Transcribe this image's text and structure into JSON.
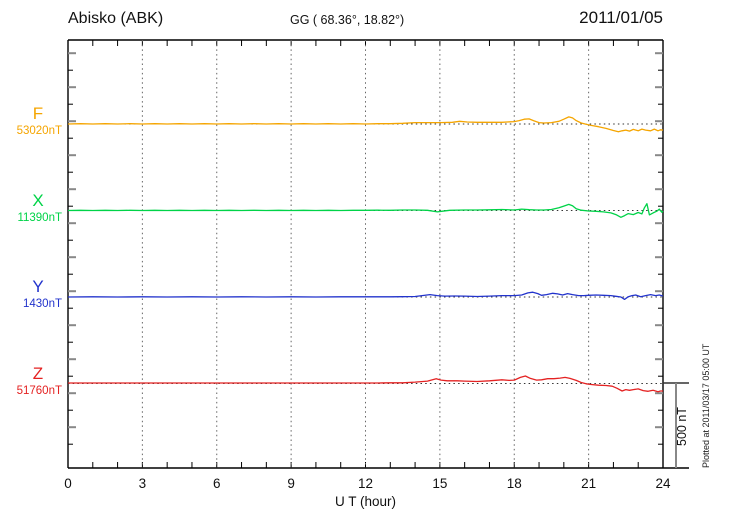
{
  "header": {
    "station": "Abisko (ABK)",
    "coords": "GG ( 68.36°,  18.82°)",
    "date": "2011/01/05"
  },
  "axes": {
    "x_label": "U T (hour)",
    "x_ticks": [
      0,
      3,
      6,
      9,
      12,
      15,
      18,
      21,
      24
    ],
    "x_minor_step_hours": 1,
    "y_tick_step_nT": 100
  },
  "scale_bar": {
    "label": "500 nT",
    "nT": 500
  },
  "footer_note": "Plotted at 2011/03/17 05:00 UT",
  "colors": {
    "F": "#f5a500",
    "X": "#00d348",
    "Y": "#2233cc",
    "Z": "#e42222",
    "axis": "#000000",
    "grid_dots": "#666666",
    "baseline_dots": "#333333"
  },
  "chart_data": {
    "type": "line",
    "title": "Abisko (ABK) magnetogram 2011/01/05",
    "xlabel": "U T (hour)",
    "x_range": [
      0,
      24
    ],
    "grid": "dotted vertical every 3 h, dotted horizontal baseline per trace",
    "amplitude_scale_nT": 500,
    "series": [
      {
        "name": "F",
        "label": "F",
        "value_label": "53020nT",
        "baseline_nT": 53020,
        "color": "#f5a500",
        "points": [
          [
            0,
            0
          ],
          [
            0.5,
            2
          ],
          [
            1,
            0
          ],
          [
            1.5,
            2
          ],
          [
            2,
            0
          ],
          [
            2.5,
            2
          ],
          [
            3,
            0
          ],
          [
            3.5,
            2
          ],
          [
            4,
            0
          ],
          [
            4.5,
            2
          ],
          [
            5,
            0
          ],
          [
            5.5,
            2
          ],
          [
            6,
            0
          ],
          [
            6.5,
            2
          ],
          [
            7,
            0
          ],
          [
            7.5,
            2
          ],
          [
            8,
            0
          ],
          [
            8.5,
            2
          ],
          [
            9,
            0
          ],
          [
            9.5,
            2
          ],
          [
            10,
            0
          ],
          [
            10.5,
            2
          ],
          [
            11,
            0
          ],
          [
            11.5,
            2
          ],
          [
            12,
            0
          ],
          [
            12.5,
            2
          ],
          [
            13,
            2
          ],
          [
            13.5,
            4
          ],
          [
            14,
            8
          ],
          [
            14.5,
            8
          ],
          [
            15,
            8
          ],
          [
            15.5,
            10
          ],
          [
            15.8,
            16
          ],
          [
            16.1,
            12
          ],
          [
            16.5,
            10
          ],
          [
            17,
            10
          ],
          [
            17.5,
            10
          ],
          [
            18,
            14
          ],
          [
            18.2,
            20
          ],
          [
            18.4,
            28
          ],
          [
            18.6,
            30
          ],
          [
            18.8,
            18
          ],
          [
            19,
            8
          ],
          [
            19.2,
            6
          ],
          [
            19.5,
            8
          ],
          [
            19.8,
            16
          ],
          [
            20,
            28
          ],
          [
            20.2,
            42
          ],
          [
            20.35,
            36
          ],
          [
            20.5,
            20
          ],
          [
            20.7,
            6
          ],
          [
            20.9,
            -2
          ],
          [
            21.1,
            -8
          ],
          [
            21.4,
            -16
          ],
          [
            21.7,
            -26
          ],
          [
            22,
            -38
          ],
          [
            22.2,
            -46
          ],
          [
            22.35,
            -40
          ],
          [
            22.5,
            -36
          ],
          [
            22.65,
            -42
          ],
          [
            22.8,
            -32
          ],
          [
            23,
            -40
          ],
          [
            23.15,
            -30
          ],
          [
            23.3,
            -36
          ],
          [
            23.5,
            -40
          ],
          [
            23.65,
            -30
          ],
          [
            23.8,
            -40
          ],
          [
            23.9,
            -34
          ],
          [
            24,
            -36
          ]
        ]
      },
      {
        "name": "X",
        "label": "X",
        "value_label": "11390nT",
        "baseline_nT": 11390,
        "color": "#00d348",
        "points": [
          [
            0,
            0
          ],
          [
            0.5,
            1
          ],
          [
            1,
            0
          ],
          [
            1.5,
            1
          ],
          [
            2,
            0
          ],
          [
            2.5,
            1
          ],
          [
            3,
            0
          ],
          [
            3.5,
            1
          ],
          [
            4,
            0
          ],
          [
            4.5,
            1
          ],
          [
            5,
            0
          ],
          [
            5.5,
            1
          ],
          [
            6,
            0
          ],
          [
            6.5,
            1
          ],
          [
            7,
            0
          ],
          [
            7.5,
            1
          ],
          [
            8,
            0
          ],
          [
            8.5,
            1
          ],
          [
            9,
            0
          ],
          [
            9.5,
            1
          ],
          [
            10,
            0
          ],
          [
            10.5,
            1
          ],
          [
            11,
            0
          ],
          [
            11.5,
            1
          ],
          [
            12,
            1
          ],
          [
            12.5,
            2
          ],
          [
            13,
            1
          ],
          [
            13.5,
            3
          ],
          [
            14,
            3
          ],
          [
            14.5,
            1
          ],
          [
            14.9,
            -8
          ],
          [
            15.1,
            -4
          ],
          [
            15.4,
            1
          ],
          [
            16,
            3
          ],
          [
            16.5,
            3
          ],
          [
            17,
            4
          ],
          [
            17.5,
            6
          ],
          [
            18,
            3
          ],
          [
            18.3,
            8
          ],
          [
            18.6,
            5
          ],
          [
            18.9,
            3
          ],
          [
            19.2,
            3
          ],
          [
            19.5,
            6
          ],
          [
            19.8,
            16
          ],
          [
            20,
            26
          ],
          [
            20.2,
            36
          ],
          [
            20.35,
            28
          ],
          [
            20.5,
            10
          ],
          [
            20.7,
            2
          ],
          [
            21,
            -3
          ],
          [
            21.3,
            -5
          ],
          [
            21.6,
            -8
          ],
          [
            21.9,
            -14
          ],
          [
            22.1,
            -24
          ],
          [
            22.3,
            -40
          ],
          [
            22.45,
            -30
          ],
          [
            22.6,
            -18
          ],
          [
            22.8,
            -24
          ],
          [
            23,
            -12
          ],
          [
            23.15,
            -20
          ],
          [
            23.25,
            16
          ],
          [
            23.35,
            40
          ],
          [
            23.45,
            -26
          ],
          [
            23.6,
            -14
          ],
          [
            23.75,
            -4
          ],
          [
            23.85,
            8
          ],
          [
            23.95,
            -10
          ],
          [
            24,
            -4
          ]
        ]
      },
      {
        "name": "Y",
        "label": "Y",
        "value_label": "1430nT",
        "baseline_nT": 1430,
        "color": "#2233cc",
        "points": [
          [
            0,
            0
          ],
          [
            1,
            1
          ],
          [
            2,
            0
          ],
          [
            3,
            1
          ],
          [
            4,
            0
          ],
          [
            5,
            1
          ],
          [
            6,
            0
          ],
          [
            7,
            1
          ],
          [
            8,
            0
          ],
          [
            9,
            1
          ],
          [
            10,
            0
          ],
          [
            11,
            1
          ],
          [
            12,
            1
          ],
          [
            13,
            1
          ],
          [
            13.5,
            2
          ],
          [
            14,
            3
          ],
          [
            14.6,
            14
          ],
          [
            14.9,
            8
          ],
          [
            15.2,
            5
          ],
          [
            15.6,
            6
          ],
          [
            16,
            5
          ],
          [
            16.5,
            3
          ],
          [
            17,
            5
          ],
          [
            17.5,
            8
          ],
          [
            18,
            8
          ],
          [
            18.3,
            12
          ],
          [
            18.55,
            24
          ],
          [
            18.75,
            28
          ],
          [
            18.95,
            20
          ],
          [
            19.1,
            10
          ],
          [
            19.3,
            14
          ],
          [
            19.55,
            22
          ],
          [
            19.75,
            18
          ],
          [
            19.95,
            12
          ],
          [
            20.15,
            20
          ],
          [
            20.35,
            14
          ],
          [
            20.6,
            8
          ],
          [
            20.8,
            8
          ],
          [
            21,
            10
          ],
          [
            21.3,
            12
          ],
          [
            21.6,
            10
          ],
          [
            21.9,
            8
          ],
          [
            22.1,
            4
          ],
          [
            22.3,
            0
          ],
          [
            22.45,
            -14
          ],
          [
            22.6,
            2
          ],
          [
            22.75,
            8
          ],
          [
            22.9,
            12
          ],
          [
            23.1,
            2
          ],
          [
            23.3,
            8
          ],
          [
            23.5,
            14
          ],
          [
            23.7,
            8
          ],
          [
            23.85,
            12
          ],
          [
            24,
            6
          ]
        ]
      },
      {
        "name": "Z",
        "label": "Z",
        "value_label": "51760nT",
        "baseline_nT": 51760,
        "color": "#e42222",
        "points": [
          [
            0,
            3
          ],
          [
            1,
            3
          ],
          [
            2,
            3
          ],
          [
            3,
            3
          ],
          [
            4,
            3
          ],
          [
            5,
            3
          ],
          [
            6,
            3
          ],
          [
            7,
            3
          ],
          [
            8,
            3
          ],
          [
            9,
            3
          ],
          [
            10,
            3
          ],
          [
            11,
            3
          ],
          [
            12,
            3
          ],
          [
            12.5,
            3
          ],
          [
            13,
            4
          ],
          [
            13.5,
            4
          ],
          [
            14,
            8
          ],
          [
            14.5,
            14
          ],
          [
            14.85,
            28
          ],
          [
            15.05,
            20
          ],
          [
            15.3,
            16
          ],
          [
            15.7,
            16
          ],
          [
            16,
            14
          ],
          [
            16.5,
            12
          ],
          [
            17,
            16
          ],
          [
            17.5,
            22
          ],
          [
            17.8,
            18
          ],
          [
            18,
            20
          ],
          [
            18.25,
            36
          ],
          [
            18.45,
            44
          ],
          [
            18.65,
            30
          ],
          [
            18.9,
            20
          ],
          [
            19.1,
            22
          ],
          [
            19.35,
            28
          ],
          [
            19.6,
            28
          ],
          [
            19.85,
            32
          ],
          [
            20.05,
            36
          ],
          [
            20.25,
            30
          ],
          [
            20.5,
            18
          ],
          [
            20.7,
            6
          ],
          [
            20.9,
            -2
          ],
          [
            21.1,
            -6
          ],
          [
            21.4,
            -10
          ],
          [
            21.7,
            -12
          ],
          [
            21.95,
            -16
          ],
          [
            22.15,
            -28
          ],
          [
            22.35,
            -44
          ],
          [
            22.5,
            -36
          ],
          [
            22.65,
            -40
          ],
          [
            22.8,
            -36
          ],
          [
            23,
            -32
          ],
          [
            23.2,
            -42
          ],
          [
            23.4,
            -46
          ],
          [
            23.6,
            -40
          ],
          [
            23.8,
            -48
          ],
          [
            23.9,
            -44
          ],
          [
            24,
            -44
          ]
        ]
      }
    ]
  }
}
